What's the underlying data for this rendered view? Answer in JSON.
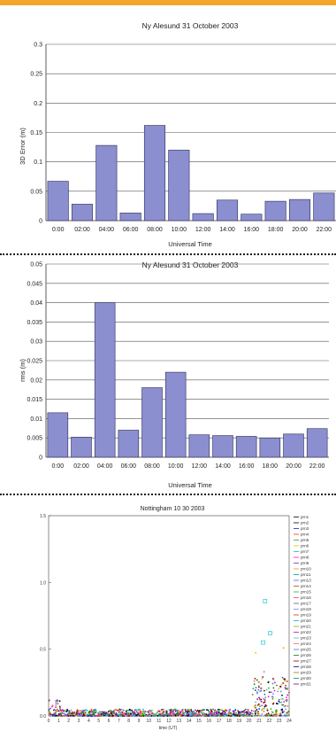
{
  "colors": {
    "top_bar": "#f4a62a",
    "bar_fill": "#8b8fd0",
    "bar_stroke": "#2c2c5a",
    "separator": "#1b1b1b"
  },
  "chart_data": [
    {
      "type": "bar",
      "title": "Ny Alesund 31 October 2003",
      "xlabel": "Universal Time",
      "ylabel": "3D Error (m)",
      "categories": [
        "0:00",
        "02:00",
        "04:00",
        "06:00",
        "08:00",
        "10:00",
        "12:00",
        "14:00",
        "16:00",
        "18:00",
        "20:00",
        "22:00"
      ],
      "values": [
        0.067,
        0.028,
        0.128,
        0.013,
        0.162,
        0.12,
        0.012,
        0.035,
        0.011,
        0.033,
        0.036,
        0.047
      ],
      "ylim": [
        0,
        0.3
      ],
      "yticks": [
        "0",
        "0.05",
        "0.1",
        "0.15",
        "0.2",
        "0.25",
        "0.3"
      ],
      "grid": true
    },
    {
      "type": "bar",
      "title": "Ny Alesund 31 October 2003",
      "xlabel": "Universal Time",
      "ylabel": "rms (m)",
      "categories": [
        "0:00",
        "02:00",
        "04:00",
        "06:00",
        "08:00",
        "10:00",
        "12:00",
        "14:00",
        "16:00",
        "18:00",
        "20:00",
        "22:00"
      ],
      "values": [
        0.0115,
        0.0052,
        0.04,
        0.007,
        0.018,
        0.022,
        0.0058,
        0.0056,
        0.0054,
        0.005,
        0.006,
        0.0074
      ],
      "ylim": [
        0,
        0.05
      ],
      "yticks": [
        "0",
        "0.005",
        "0.01",
        "0.015",
        "0.02",
        "0.025",
        "0.03",
        "0.035",
        "0.04",
        "0.045",
        "0.05"
      ],
      "grid": true
    },
    {
      "type": "scatter",
      "title": "Nottingham 10 30 2003",
      "xlabel": "time (UT)",
      "ylabel": "",
      "xlim": [
        0,
        24
      ],
      "ylim": [
        0,
        1.5
      ],
      "xticks": [
        "0",
        "1",
        "2",
        "3",
        "4",
        "5",
        "6",
        "7",
        "8",
        "9",
        "10",
        "11",
        "12",
        "13",
        "14",
        "15",
        "16",
        "17",
        "18",
        "19",
        "20",
        "21",
        "22",
        "23",
        "24"
      ],
      "yticks": [
        "0.0",
        "0.5",
        "1.0",
        "1.5"
      ],
      "legend_position": "right",
      "legend": [
        "prn1",
        "prn2",
        "prn3",
        "prn4",
        "prn5",
        "prn6",
        "prn7",
        "prn8",
        "prn9",
        "prn10",
        "prn11",
        "prn13",
        "prn14",
        "prn15",
        "prn16",
        "prn17",
        "prn18",
        "prn19",
        "prn20",
        "prn21",
        "prn22",
        "prn23",
        "prn24",
        "prn25",
        "prn26",
        "prn27",
        "prn28",
        "prn29",
        "prn30",
        "prn31"
      ],
      "series_colors": [
        "#000000",
        "#000000",
        "#1f1fd6",
        "#ff2a2a",
        "#2aa02a",
        "#e0c000",
        "#00bcd4",
        "#ff00ff",
        "#7a2aa0",
        "#ff8c00",
        "#00a080",
        "#4060ff",
        "#a05020",
        "#00d000",
        "#ff4080",
        "#606060",
        "#8080ff",
        "#c04000",
        "#00a0ff",
        "#a0a000",
        "#c000c0",
        "#40c0c0",
        "#ff6060",
        "#6060c0",
        "#008000",
        "#800000",
        "#000080",
        "#808000",
        "#008080",
        "#800080"
      ],
      "activity": [
        {
          "from": 0,
          "to": 20.3,
          "level": 0.05
        },
        {
          "from": 20.3,
          "to": 24,
          "level": 0.3
        }
      ],
      "highlights": [
        {
          "x": 21.6,
          "y": 0.86
        },
        {
          "x": 21.4,
          "y": 0.55
        },
        {
          "x": 22.1,
          "y": 0.62
        }
      ]
    }
  ]
}
